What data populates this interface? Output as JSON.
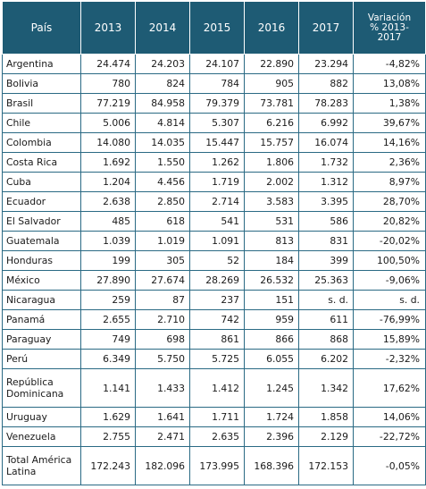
{
  "table": {
    "headers": {
      "country": "País",
      "years": [
        "2013",
        "2014",
        "2015",
        "2016",
        "2017"
      ],
      "variation_line1": "Variación",
      "variation_line2": "% 2013-",
      "variation_line3": "2017"
    },
    "rows": [
      {
        "country": "Argentina",
        "values": [
          "24.474",
          "24.203",
          "24.107",
          "22.890",
          "23.294"
        ],
        "variation": "-4,82%"
      },
      {
        "country": "Bolivia",
        "values": [
          "780",
          "824",
          "784",
          "905",
          "882"
        ],
        "variation": "13,08%"
      },
      {
        "country": "Brasil",
        "values": [
          "77.219",
          "84.958",
          "79.379",
          "73.781",
          "78.283"
        ],
        "variation": "1,38%"
      },
      {
        "country": "Chile",
        "values": [
          "5.006",
          "4.814",
          "5.307",
          "6.216",
          "6.992"
        ],
        "variation": "39,67%"
      },
      {
        "country": "Colombia",
        "values": [
          "14.080",
          "14.035",
          "15.447",
          "15.757",
          "16.074"
        ],
        "variation": "14,16%"
      },
      {
        "country": "Costa Rica",
        "values": [
          "1.692",
          "1.550",
          "1.262",
          "1.806",
          "1.732"
        ],
        "variation": "2,36%"
      },
      {
        "country": "Cuba",
        "values": [
          "1.204",
          "4.456",
          "1.719",
          "2.002",
          "1.312"
        ],
        "variation": "8,97%"
      },
      {
        "country": "Ecuador",
        "values": [
          "2.638",
          "2.850",
          "2.714",
          "3.583",
          "3.395"
        ],
        "variation": "28,70%"
      },
      {
        "country": "El Salvador",
        "values": [
          "485",
          "618",
          "541",
          "531",
          "586"
        ],
        "variation": "20,82%"
      },
      {
        "country": "Guatemala",
        "values": [
          "1.039",
          "1.019",
          "1.091",
          "813",
          "831"
        ],
        "variation": "-20,02%"
      },
      {
        "country": "Honduras",
        "values": [
          "199",
          "305",
          "52",
          "184",
          "399"
        ],
        "variation": "100,50%"
      },
      {
        "country": "México",
        "values": [
          "27.890",
          "27.674",
          "28.269",
          "26.532",
          "25.363"
        ],
        "variation": "-9,06%"
      },
      {
        "country": "Nicaragua",
        "values": [
          "259",
          "87",
          "237",
          "151",
          "s. d."
        ],
        "variation": "s. d."
      },
      {
        "country": "Panamá",
        "values": [
          "2.655",
          "2.710",
          "742",
          "959",
          "611"
        ],
        "variation": "-76,99%"
      },
      {
        "country": "Paraguay",
        "values": [
          "749",
          "698",
          "861",
          "866",
          "868"
        ],
        "variation": "15,89%"
      },
      {
        "country": "Perú",
        "values": [
          "6.349",
          "5.750",
          "5.725",
          "6.055",
          "6.202"
        ],
        "variation": "-2,32%"
      },
      {
        "country": "República Dominicana",
        "values": [
          "1.141",
          "1.433",
          "1.412",
          "1.245",
          "1.342"
        ],
        "variation": "17,62%"
      },
      {
        "country": "Uruguay",
        "values": [
          "1.629",
          "1.641",
          "1.711",
          "1.724",
          "1.858"
        ],
        "variation": "14,06%"
      },
      {
        "country": "Venezuela",
        "values": [
          "2.755",
          "2.471",
          "2.635",
          "2.396",
          "2.129"
        ],
        "variation": "-22,72%"
      },
      {
        "country": "Total América Latina",
        "values": [
          "172.243",
          "182.096",
          "173.995",
          "168.396",
          "172.153"
        ],
        "variation": "-0,05%"
      }
    ]
  }
}
